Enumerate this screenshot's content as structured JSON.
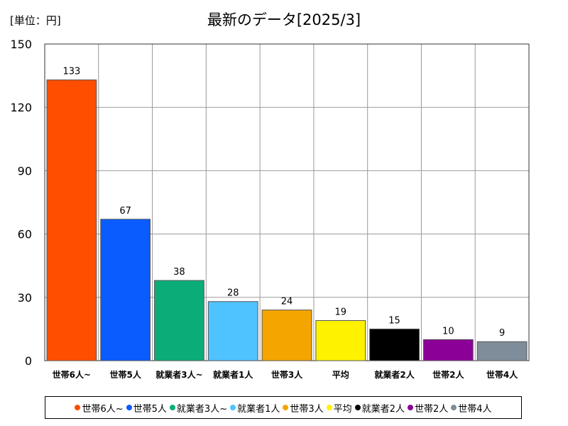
{
  "unit_label": "[単位：円]",
  "chart_data": {
    "type": "bar",
    "title": "最新のデータ[2025/3]",
    "xlabel": "",
    "ylabel": "",
    "ylim": [
      0,
      150
    ],
    "yticks": [
      0,
      30,
      60,
      90,
      120,
      150
    ],
    "grid": true,
    "legend_position": "bottom",
    "categories": [
      "世帯6人~",
      "世帯5人",
      "就業者3人~",
      "就業者1人",
      "世帯3人",
      "平均",
      "就業者2人",
      "世帯2人",
      "世帯4人"
    ],
    "values": [
      133,
      67,
      38,
      28,
      24,
      19,
      15,
      10,
      9
    ],
    "colors": [
      "#ff4e00",
      "#0a5cff",
      "#0aad78",
      "#4fc3ff",
      "#f5a500",
      "#fff200",
      "#000000",
      "#8b0097",
      "#7f8c99"
    ]
  }
}
